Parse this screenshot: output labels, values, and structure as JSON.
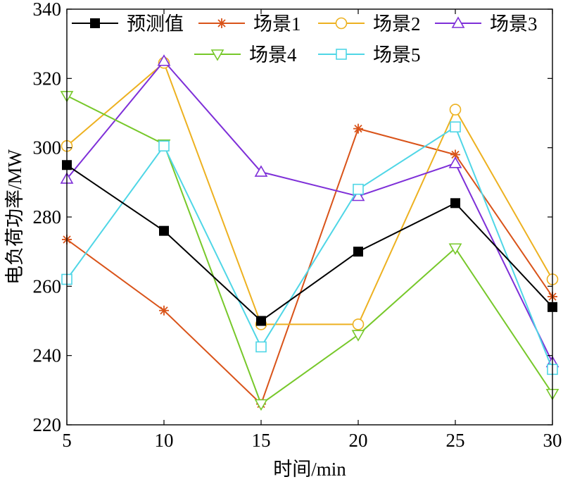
{
  "chart_data": {
    "type": "line",
    "xlabel": "时间/min",
    "ylabel": "电负荷功率/MW",
    "x": [
      5,
      10,
      15,
      20,
      25,
      30
    ],
    "xlim": [
      5,
      30
    ],
    "ylim": [
      220,
      340
    ],
    "xticks": [
      5,
      10,
      15,
      20,
      25,
      30
    ],
    "yticks": [
      220,
      240,
      260,
      280,
      300,
      320,
      340
    ],
    "grid": false,
    "legend_position": "top",
    "series": [
      {
        "name": "预测值",
        "color": "#000000",
        "marker": "filled-square",
        "values": [
          295,
          276,
          250,
          270,
          284,
          254
        ]
      },
      {
        "name": "场景1",
        "color": "#d95319",
        "marker": "asterisk",
        "values": [
          273.5,
          253,
          226,
          305.5,
          298,
          257
        ]
      },
      {
        "name": "场景2",
        "color": "#edb120",
        "marker": "circle",
        "values": [
          300.5,
          324.5,
          249,
          249,
          311,
          262
        ]
      },
      {
        "name": "场景3",
        "color": "#7e2fd8",
        "marker": "triangle-up",
        "values": [
          291,
          325,
          293,
          286,
          295.5,
          238
        ]
      },
      {
        "name": "场景4",
        "color": "#77c82a",
        "marker": "triangle-down",
        "values": [
          315,
          301,
          226,
          246,
          271,
          229
        ]
      },
      {
        "name": "场景5",
        "color": "#4fd6e6",
        "marker": "square",
        "values": [
          262,
          300.5,
          242.5,
          288,
          306,
          236
        ]
      }
    ]
  }
}
